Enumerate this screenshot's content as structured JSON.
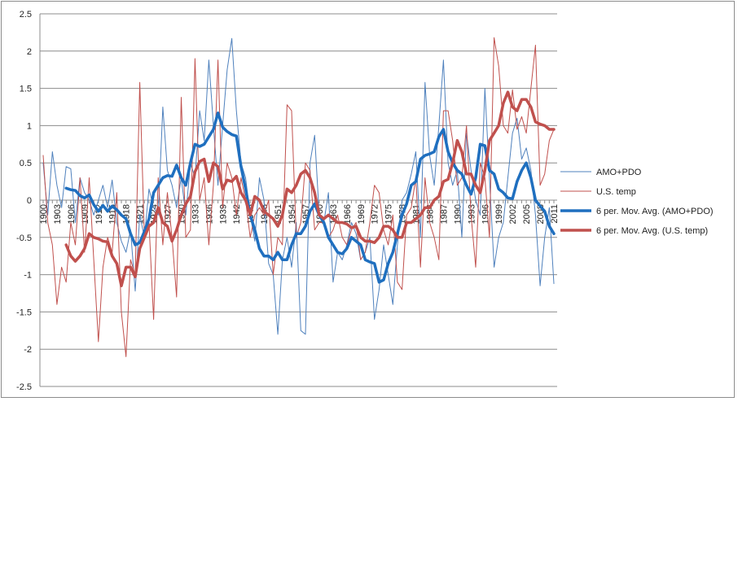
{
  "chart_data": {
    "type": "line",
    "x": [
      1900,
      1901,
      1902,
      1903,
      1904,
      1905,
      1906,
      1907,
      1908,
      1909,
      1910,
      1911,
      1912,
      1913,
      1914,
      1915,
      1916,
      1917,
      1918,
      1919,
      1920,
      1921,
      1922,
      1923,
      1924,
      1925,
      1926,
      1927,
      1928,
      1929,
      1930,
      1931,
      1932,
      1933,
      1934,
      1935,
      1936,
      1937,
      1938,
      1939,
      1940,
      1941,
      1942,
      1943,
      1944,
      1945,
      1946,
      1947,
      1948,
      1949,
      1950,
      1951,
      1952,
      1953,
      1954,
      1955,
      1956,
      1957,
      1958,
      1959,
      1960,
      1961,
      1962,
      1963,
      1964,
      1965,
      1966,
      1967,
      1968,
      1969,
      1970,
      1971,
      1972,
      1973,
      1974,
      1975,
      1976,
      1977,
      1978,
      1979,
      1980,
      1981,
      1982,
      1983,
      1984,
      1985,
      1986,
      1987,
      1988,
      1989,
      1990,
      1991,
      1992,
      1993,
      1994,
      1995,
      1996,
      1997,
      1998,
      1999,
      2000,
      2001,
      2002,
      2003,
      2004,
      2005,
      2006,
      2007,
      2008,
      2009,
      2010,
      2011
    ],
    "x_tick_labels": [
      "1900",
      "1903",
      "1906",
      "1909",
      "1912",
      "1915",
      "1918",
      "1921",
      "1924",
      "1927",
      "1930",
      "1933",
      "1936",
      "1939",
      "1942",
      "1945",
      "1948",
      "1951",
      "1954",
      "1957",
      "1960",
      "1963",
      "1966",
      "1969",
      "1972",
      "1975",
      "1978",
      "1981",
      "1984",
      "1987",
      "1990",
      "1993",
      "1996",
      "1999",
      "2002",
      "2005",
      "2008",
      "2011"
    ],
    "y_tick_labels": [
      "2.5",
      "2",
      "1.5",
      "1",
      "0.5",
      "0",
      "-0.5",
      "-1",
      "-1.5",
      "-2",
      "-2.5"
    ],
    "ylim": [
      -2.5,
      2.5
    ],
    "grid": "horizontal",
    "legend_position": "right",
    "series": [
      {
        "name": "AMO+PDO",
        "color": "#4f81bd",
        "style": "thin",
        "values": [
          0.5,
          -0.2,
          0.65,
          0.2,
          -0.1,
          0.45,
          0.42,
          -0.3,
          0.3,
          0.1,
          0.0,
          -0.2,
          0.0,
          0.2,
          -0.1,
          0.27,
          -0.3,
          -0.55,
          -0.7,
          -0.4,
          -1.22,
          -0.2,
          -0.5,
          0.15,
          -0.1,
          -0.2,
          1.25,
          0.4,
          0.2,
          -0.1,
          0.3,
          -0.2,
          0.5,
          0.3,
          1.2,
          0.8,
          1.88,
          1.0,
          0.2,
          1.0,
          1.75,
          2.17,
          1.2,
          0.5,
          0.3,
          -0.2,
          -0.55,
          0.3,
          0.0,
          -0.85,
          -1.0,
          -1.8,
          -0.8,
          -0.5,
          -0.9,
          -0.3,
          -1.75,
          -1.8,
          0.5,
          0.87,
          -0.2,
          -0.3,
          0.1,
          -1.1,
          -0.7,
          -0.8,
          -0.6,
          -0.3,
          -0.45,
          -0.8,
          -0.7,
          -0.5,
          -1.6,
          -1.2,
          -0.6,
          -1.0,
          -1.4,
          -0.6,
          0.0,
          0.1,
          0.35,
          0.65,
          -0.5,
          1.58,
          0.6,
          0.2,
          1.0,
          1.88,
          0.5,
          0.2,
          0.4,
          -0.5,
          0.9,
          0.4,
          0.0,
          -0.2,
          1.5,
          0.3,
          -0.9,
          -0.5,
          -0.3,
          0.3,
          0.9,
          1.1,
          0.55,
          0.7,
          0.4,
          -0.2,
          -1.15,
          -0.5,
          -0.1,
          -1.12
        ]
      },
      {
        "name": "U.S. temp",
        "color": "#c0504d",
        "style": "thin",
        "values": [
          0.6,
          -0.3,
          -0.6,
          -1.4,
          -0.9,
          -1.1,
          -0.3,
          -0.6,
          0.3,
          -0.7,
          0.3,
          -0.8,
          -1.9,
          -0.9,
          -0.5,
          -0.7,
          0.1,
          -1.5,
          -2.1,
          -0.8,
          -1.0,
          1.58,
          -0.5,
          -0.3,
          -1.6,
          0.3,
          -0.6,
          0.1,
          -0.5,
          -1.3,
          1.38,
          -0.5,
          -0.4,
          1.9,
          0.0,
          0.3,
          -0.6,
          0.2,
          1.88,
          -0.1,
          0.5,
          0.3,
          -0.2,
          0.3,
          0.0,
          -0.5,
          -0.2,
          -0.1,
          -0.2,
          0.0,
          -1.0,
          -0.5,
          -0.6,
          1.28,
          1.2,
          -0.5,
          -0.3,
          0.5,
          0.4,
          -0.4,
          -0.3,
          -0.3,
          -0.5,
          -0.4,
          -0.2,
          -0.5,
          -0.6,
          -0.4,
          -0.3,
          -0.8,
          -0.7,
          -0.3,
          0.2,
          0.1,
          -0.4,
          -0.6,
          -0.2,
          -1.1,
          -1.2,
          -0.2,
          -0.1,
          0.3,
          -0.9,
          0.3,
          -0.3,
          -0.5,
          -0.8,
          1.2,
          1.2,
          0.8,
          0.2,
          0.3,
          1.0,
          -0.2,
          -0.9,
          0.5,
          0.3,
          -0.5,
          2.18,
          1.8,
          1.0,
          0.9,
          1.48,
          0.95,
          1.12,
          0.9,
          1.5,
          2.08,
          0.2,
          0.35,
          0.8,
          0.95
        ]
      },
      {
        "name": "6 per. Mov. Avg. (AMO+PDO)",
        "color": "#1f6fbf",
        "style": "thick",
        "values": [
          null,
          null,
          null,
          null,
          null,
          0.16,
          0.14,
          0.13,
          0.06,
          0.03,
          0.07,
          -0.06,
          -0.15,
          -0.07,
          -0.15,
          -0.08,
          -0.13,
          -0.2,
          -0.25,
          -0.45,
          -0.6,
          -0.57,
          -0.42,
          -0.25,
          0.1,
          0.2,
          0.3,
          0.33,
          0.32,
          0.47,
          0.3,
          0.2,
          0.5,
          0.75,
          0.72,
          0.75,
          0.85,
          0.95,
          1.17,
          0.98,
          0.92,
          0.88,
          0.86,
          0.45,
          0.15,
          -0.2,
          -0.4,
          -0.65,
          -0.75,
          -0.75,
          -0.8,
          -0.7,
          -0.8,
          -0.8,
          -0.6,
          -0.45,
          -0.45,
          -0.35,
          -0.15,
          -0.05,
          -0.2,
          -0.3,
          -0.5,
          -0.6,
          -0.7,
          -0.72,
          -0.65,
          -0.5,
          -0.55,
          -0.6,
          -0.8,
          -0.83,
          -0.85,
          -1.1,
          -1.07,
          -0.85,
          -0.7,
          -0.45,
          -0.2,
          -0.05,
          0.2,
          0.25,
          0.55,
          0.6,
          0.62,
          0.65,
          0.85,
          0.95,
          0.65,
          0.5,
          0.4,
          0.35,
          0.2,
          0.08,
          0.3,
          0.75,
          0.73,
          0.4,
          0.35,
          0.15,
          0.1,
          0.03,
          0.02,
          0.25,
          0.4,
          0.5,
          0.3,
          0.0,
          -0.08,
          -0.15,
          -0.35,
          -0.45
        ]
      },
      {
        "name": "6 per. Mov. Avg. (U.S. temp)",
        "color": "#c0504d",
        "style": "thick",
        "values": [
          null,
          null,
          null,
          null,
          null,
          -0.6,
          -0.75,
          -0.82,
          -0.75,
          -0.65,
          -0.45,
          -0.5,
          -0.52,
          -0.55,
          -0.56,
          -0.75,
          -0.85,
          -1.15,
          -0.9,
          -0.9,
          -1.03,
          -0.65,
          -0.5,
          -0.35,
          -0.3,
          -0.1,
          -0.3,
          -0.35,
          -0.55,
          -0.4,
          -0.2,
          -0.05,
          0.05,
          0.38,
          0.52,
          0.55,
          0.25,
          0.5,
          0.45,
          0.15,
          0.27,
          0.25,
          0.32,
          0.1,
          0.0,
          -0.2,
          0.05,
          0.0,
          -0.15,
          -0.2,
          -0.25,
          -0.35,
          -0.2,
          0.15,
          0.1,
          0.2,
          0.35,
          0.4,
          0.3,
          0.1,
          -0.2,
          -0.25,
          -0.2,
          -0.25,
          -0.3,
          -0.3,
          -0.32,
          -0.37,
          -0.35,
          -0.5,
          -0.55,
          -0.55,
          -0.57,
          -0.5,
          -0.35,
          -0.35,
          -0.4,
          -0.5,
          -0.5,
          -0.3,
          -0.3,
          -0.25,
          -0.2,
          -0.1,
          -0.1,
          0.0,
          0.05,
          0.25,
          0.28,
          0.5,
          0.8,
          0.65,
          0.35,
          0.35,
          0.2,
          0.1,
          0.4,
          0.8,
          0.9,
          1.0,
          1.3,
          1.45,
          1.25,
          1.2,
          1.35,
          1.35,
          1.25,
          1.05,
          1.02,
          1.0,
          0.95,
          0.95
        ]
      }
    ]
  }
}
